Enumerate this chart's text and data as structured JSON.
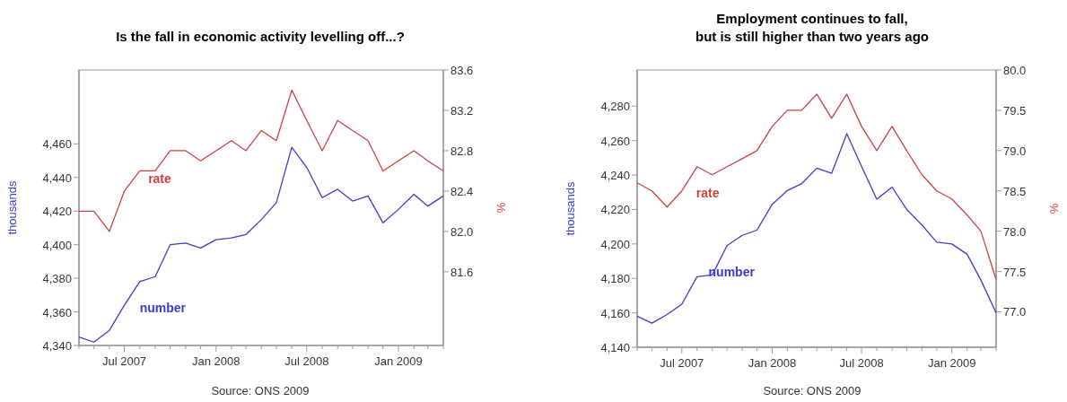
{
  "chart_data": [
    {
      "type": "line",
      "title": "Is the fall in economic activity levelling off...?",
      "ylabel": "thousands",
      "y2label": "%",
      "annotations": [
        "Source: ONS 2009"
      ],
      "x": [
        "2007-04",
        "2007-05",
        "2007-06",
        "2007-07",
        "2007-08",
        "2007-09",
        "2007-10",
        "2007-11",
        "2007-12",
        "2008-01",
        "2008-02",
        "2008-03",
        "2008-04",
        "2008-05",
        "2008-06",
        "2008-07",
        "2008-08",
        "2008-09",
        "2008-10",
        "2008-11",
        "2008-12",
        "2009-01",
        "2009-02",
        "2009-03",
        "2009-04"
      ],
      "series": [
        {
          "name": "rate",
          "color": "#d04040",
          "axis": "y2",
          "values": [
            82.2,
            82.2,
            82.0,
            82.4,
            82.6,
            82.6,
            82.8,
            82.8,
            82.7,
            82.8,
            82.9,
            82.8,
            83.0,
            82.9,
            83.4,
            83.1,
            82.8,
            83.1,
            83.0,
            82.9,
            82.6,
            82.7,
            82.8,
            82.7,
            82.6
          ]
        },
        {
          "name": "number",
          "color": "#3c3cc8",
          "values": [
            4345,
            4342,
            4349,
            4364,
            4378,
            4381,
            4400,
            4401,
            4398,
            4403,
            4404,
            4406,
            4415,
            4425,
            4458,
            4446,
            4428,
            4433,
            4426,
            4429,
            4413,
            4421,
            4430,
            4423,
            4429
          ]
        }
      ],
      "xlim": [
        "2007-04",
        "2009-04"
      ],
      "xticks": [
        {
          "value": "2007-04",
          "label": null
        },
        {
          "value": "2007-05",
          "label": null
        },
        {
          "value": "2007-06",
          "label": null
        },
        {
          "value": "2007-07",
          "label": "Jul 2007"
        },
        {
          "value": "2007-08",
          "label": null
        },
        {
          "value": "2007-09",
          "label": null
        },
        {
          "value": "2007-10",
          "label": null
        },
        {
          "value": "2007-11",
          "label": null
        },
        {
          "value": "2007-12",
          "label": null
        },
        {
          "value": "2008-01",
          "label": "Jan 2008"
        },
        {
          "value": "2008-02",
          "label": null
        },
        {
          "value": "2008-03",
          "label": null
        },
        {
          "value": "2008-04",
          "label": null
        },
        {
          "value": "2008-05",
          "label": null
        },
        {
          "value": "2008-06",
          "label": null
        },
        {
          "value": "2008-07",
          "label": "Jul 2008"
        },
        {
          "value": "2008-08",
          "label": null
        },
        {
          "value": "2008-09",
          "label": null
        },
        {
          "value": "2008-10",
          "label": null
        },
        {
          "value": "2008-11",
          "label": null
        },
        {
          "value": "2008-12",
          "label": null
        },
        {
          "value": "2009-01",
          "label": "Jan 2009"
        },
        {
          "value": "2009-02",
          "label": null
        },
        {
          "value": "2009-03",
          "label": null
        },
        {
          "value": "2009-04",
          "label": null
        }
      ],
      "ylim": [
        4340,
        4504
      ],
      "yticks": [
        {
          "value": 4340,
          "label": "4,340"
        },
        {
          "value": 4360,
          "label": "4,360"
        },
        {
          "value": 4380,
          "label": "4,380"
        },
        {
          "value": 4400,
          "label": "4,400"
        },
        {
          "value": 4420,
          "label": "4,420"
        },
        {
          "value": 4440,
          "label": "4,440"
        },
        {
          "value": 4460,
          "label": "4,460"
        }
      ],
      "y2lim": [
        80.87,
        83.6
      ],
      "y2ticks": [
        {
          "value": 81.6,
          "label": "81.6"
        },
        {
          "value": 82,
          "label": "82.0"
        },
        {
          "value": 82.4,
          "label": "82.4"
        },
        {
          "value": 82.8,
          "label": "82.8"
        },
        {
          "value": 83.2,
          "label": "83.2"
        },
        {
          "value": 83.6,
          "label": "83.6"
        }
      ],
      "grid": false,
      "marker": "none",
      "line_style": "solid"
    },
    {
      "type": "line",
      "title": "Employment continues to fall,\nbut is still higher than two years ago",
      "ylabel": "thousands",
      "y2label": "%",
      "annotations": [
        "Source: ONS 2009"
      ],
      "x": [
        "2007-04",
        "2007-05",
        "2007-06",
        "2007-07",
        "2007-08",
        "2007-09",
        "2007-10",
        "2007-11",
        "2007-12",
        "2008-01",
        "2008-02",
        "2008-03",
        "2008-04",
        "2008-05",
        "2008-06",
        "2008-07",
        "2008-08",
        "2008-09",
        "2008-10",
        "2008-11",
        "2008-12",
        "2009-01",
        "2009-02",
        "2009-03",
        "2009-04"
      ],
      "series": [
        {
          "name": "rate",
          "color": "#d04040",
          "axis": "y2",
          "values": [
            78.6,
            78.5,
            78.3,
            78.5,
            78.8,
            78.7,
            78.8,
            78.9,
            79.0,
            79.3,
            79.5,
            79.5,
            79.7,
            79.4,
            79.7,
            79.3,
            79.0,
            79.3,
            79.0,
            78.7,
            78.5,
            78.4,
            78.2,
            78.0,
            77.4
          ]
        },
        {
          "name": "number",
          "color": "#3c3cc8",
          "values": [
            4158,
            4154,
            4159,
            4165,
            4181,
            4182,
            4199,
            4205,
            4208,
            4223,
            4231,
            4235,
            4244,
            4241,
            4264,
            4245,
            4226,
            4233,
            4220,
            4211,
            4201,
            4200,
            4194,
            4179,
            4160
          ]
        }
      ],
      "xlim": [
        "2007-04",
        "2009-04"
      ],
      "xticks": [
        {
          "value": "2007-04",
          "label": null
        },
        {
          "value": "2007-05",
          "label": null
        },
        {
          "value": "2007-06",
          "label": null
        },
        {
          "value": "2007-07",
          "label": "Jul 2007"
        },
        {
          "value": "2007-08",
          "label": null
        },
        {
          "value": "2007-09",
          "label": null
        },
        {
          "value": "2007-10",
          "label": null
        },
        {
          "value": "2007-11",
          "label": null
        },
        {
          "value": "2007-12",
          "label": null
        },
        {
          "value": "2008-01",
          "label": "Jan 2008"
        },
        {
          "value": "2008-02",
          "label": null
        },
        {
          "value": "2008-03",
          "label": null
        },
        {
          "value": "2008-04",
          "label": null
        },
        {
          "value": "2008-05",
          "label": null
        },
        {
          "value": "2008-06",
          "label": null
        },
        {
          "value": "2008-07",
          "label": "Jul 2008"
        },
        {
          "value": "2008-08",
          "label": null
        },
        {
          "value": "2008-09",
          "label": null
        },
        {
          "value": "2008-10",
          "label": null
        },
        {
          "value": "2008-11",
          "label": null
        },
        {
          "value": "2008-12",
          "label": null
        },
        {
          "value": "2009-01",
          "label": "Jan 2009"
        },
        {
          "value": "2009-02",
          "label": null
        },
        {
          "value": "2009-03",
          "label": null
        },
        {
          "value": "2009-04",
          "label": null
        }
      ],
      "ylim": [
        4140,
        4301
      ],
      "yticks": [
        {
          "value": 4140,
          "label": "4,140"
        },
        {
          "value": 4160,
          "label": "4,160"
        },
        {
          "value": 4180,
          "label": "4,180"
        },
        {
          "value": 4200,
          "label": "4,200"
        },
        {
          "value": 4220,
          "label": "4,220"
        },
        {
          "value": 4240,
          "label": "4,240"
        },
        {
          "value": 4260,
          "label": "4,260"
        },
        {
          "value": 4280,
          "label": "4,280"
        }
      ],
      "y2lim": [
        76.56,
        80.0
      ],
      "y2ticks": [
        {
          "value": 77,
          "label": "77.0"
        },
        {
          "value": 77.5,
          "label": "77.5"
        },
        {
          "value": 78,
          "label": "78.0"
        },
        {
          "value": 78.5,
          "label": "78.5"
        },
        {
          "value": 79,
          "label": "79.0"
        },
        {
          "value": 79.5,
          "label": "79.5"
        },
        {
          "value": 80,
          "label": "80.0"
        }
      ],
      "grid": false,
      "marker": "none",
      "line_style": "solid"
    }
  ]
}
